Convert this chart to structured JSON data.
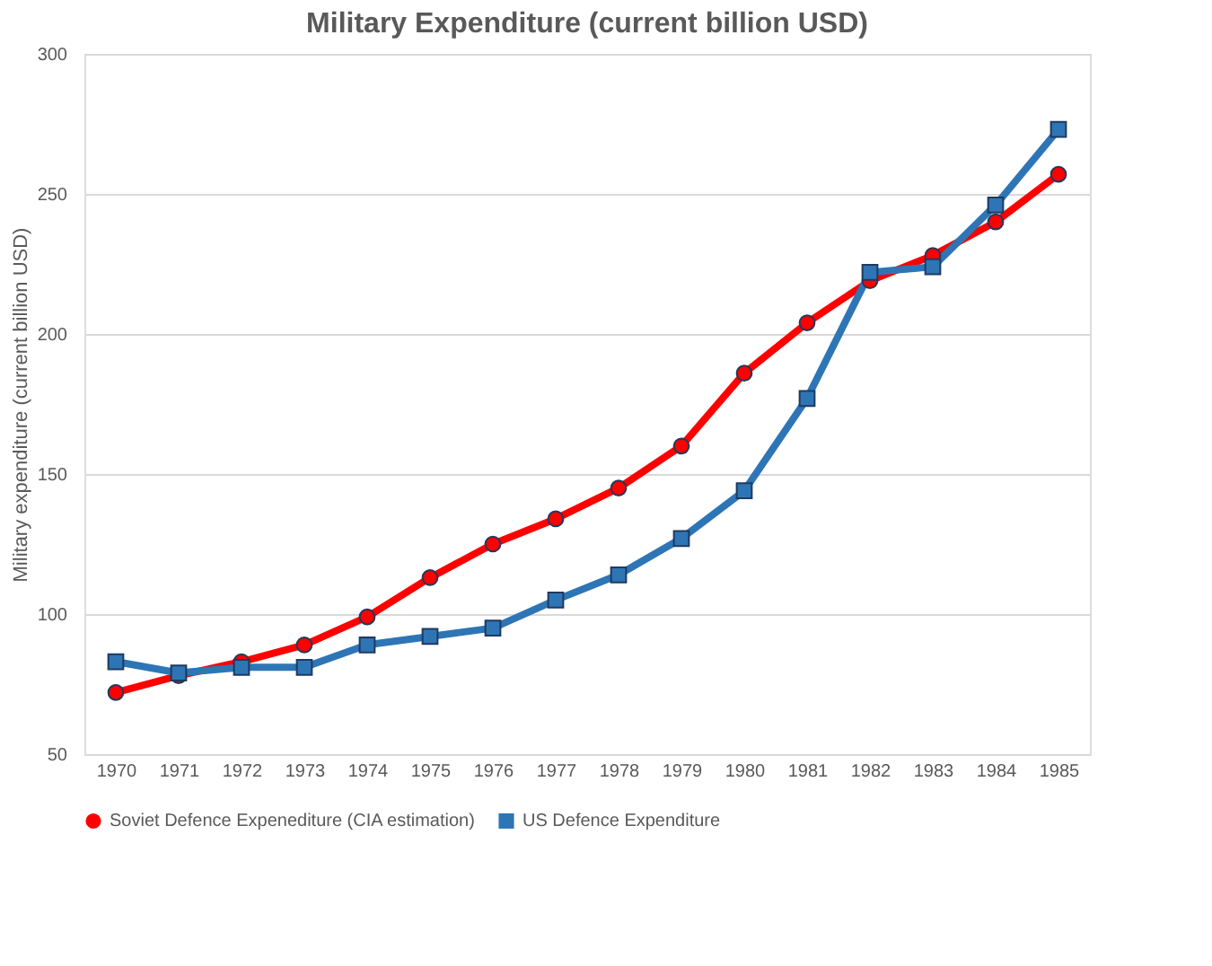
{
  "chart_data": {
    "type": "line",
    "title": "Military Expenditure (current billion USD)",
    "ylabel": "Military expenditure (current billion USD)",
    "categories": [
      "1970",
      "1971",
      "1972",
      "1973",
      "1974",
      "1975",
      "1976",
      "1977",
      "1978",
      "1979",
      "1980",
      "1981",
      "1982",
      "1983",
      "1984",
      "1985"
    ],
    "series": [
      {
        "name": "Soviet Defence Expenediture (CIA estimation)",
        "color": "#ff0000",
        "marker": "circle",
        "values": [
          72,
          78,
          83,
          89,
          99,
          113,
          125,
          134,
          145,
          160,
          186,
          204,
          219,
          228,
          240,
          257
        ]
      },
      {
        "name": "US Defence Expenditure",
        "color": "#2e75b6",
        "marker": "square",
        "values": [
          83,
          79,
          81,
          81,
          89,
          92,
          95,
          105,
          114,
          127,
          144,
          177,
          222,
          224,
          246,
          273
        ]
      }
    ],
    "ylim": [
      50,
      300
    ],
    "yticks": [
      50,
      100,
      150,
      200,
      250,
      300
    ],
    "grid": "y",
    "legend": "bottom",
    "line_style": "solid"
  }
}
